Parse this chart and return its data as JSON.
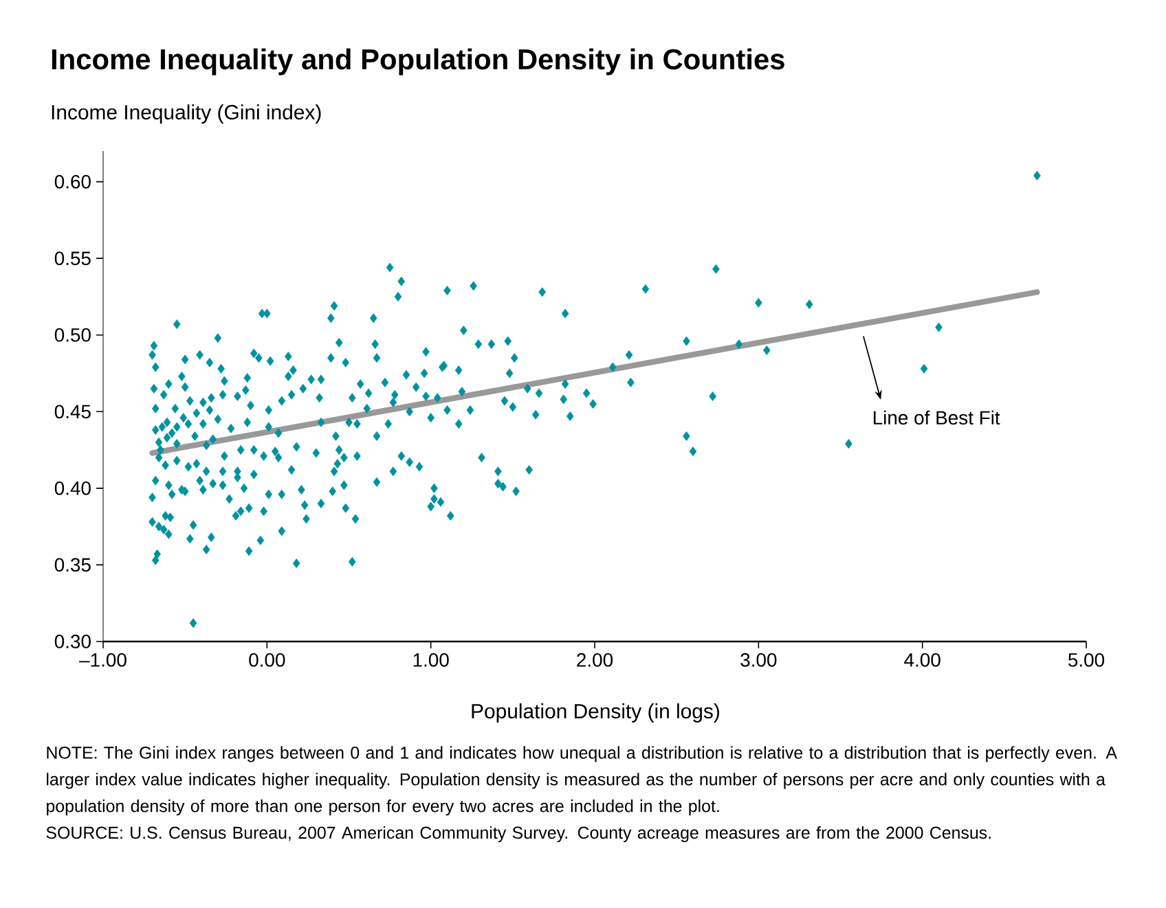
{
  "chart_data": {
    "type": "scatter",
    "title": "Income Inequality and Population Density in Counties",
    "xlabel": "Population Density (in logs)",
    "ylabel": "Income Inequality (Gini index)",
    "xlim": [
      -1,
      5
    ],
    "ylim": [
      0.3,
      0.62
    ],
    "xticks": [
      {
        "value": -1,
        "label": "–1.00"
      },
      {
        "value": 0,
        "label": "0.00"
      },
      {
        "value": 1,
        "label": "1.00"
      },
      {
        "value": 2,
        "label": "2.00"
      },
      {
        "value": 3,
        "label": "3.00"
      },
      {
        "value": 4,
        "label": "4.00"
      },
      {
        "value": 5,
        "label": "5.00"
      }
    ],
    "yticks": [
      {
        "value": 0.3,
        "label": "0.30"
      },
      {
        "value": 0.35,
        "label": "0.35"
      },
      {
        "value": 0.4,
        "label": "0.40"
      },
      {
        "value": 0.45,
        "label": "0.45"
      },
      {
        "value": 0.5,
        "label": "0.50"
      },
      {
        "value": 0.55,
        "label": "0.55"
      },
      {
        "value": 0.6,
        "label": "0.60"
      }
    ],
    "series": [
      {
        "color": "#00929f",
        "marker": "diamond",
        "x": [
          4.7,
          2.74,
          3.0,
          3.31,
          4.1,
          4.01,
          3.55,
          3.05,
          2.88,
          2.56,
          2.72,
          2.56,
          2.6,
          2.31,
          2.21,
          2.22,
          2.11,
          1.82,
          1.68,
          1.26,
          1.1,
          1.2,
          1.29,
          1.37,
          1.47,
          1.51,
          1.48,
          1.08,
          1.17,
          1.19,
          1.1,
          1.24,
          1.17,
          1.45,
          1.5,
          1.59,
          1.66,
          1.64,
          1.81,
          1.85,
          1.82,
          1.95,
          1.99,
          1.31,
          1.41,
          1.41,
          1.44,
          1.52,
          1.6,
          1.12,
          1.06,
          0.75,
          0.82,
          0.8,
          0.41,
          0.39,
          0.65,
          0.44,
          0.66,
          0.67,
          0.97,
          0.39,
          0.48,
          0.13,
          0.16,
          0.13,
          0.27,
          0.33,
          0.22,
          0.32,
          0.15,
          0.09,
          0.57,
          0.52,
          0.62,
          0.61,
          0.72,
          0.78,
          0.85,
          0.91,
          0.96,
          0.97,
          1.04,
          1.07,
          0.77,
          0.87,
          1.0,
          0.74,
          0.67,
          0.55,
          0.5,
          0.33,
          0.18,
          0.3,
          0.42,
          0.44,
          0.47,
          0.55,
          0.41,
          0.43,
          0.77,
          0.82,
          0.87,
          0.93,
          0.67,
          0.47,
          0.4,
          1.02,
          1.02,
          1.0,
          0.21,
          0.33,
          0.48,
          0.54,
          0.24,
          0.09,
          0.18,
          0.52,
          0.09,
          0.07,
          0.15,
          0.23,
          -0.03,
          0.0,
          -0.55,
          -0.3,
          -0.69,
          -0.7,
          -0.5,
          -0.41,
          -0.35,
          -0.28,
          -0.68,
          -0.08,
          -0.05,
          0.02,
          -0.52,
          -0.26,
          -0.12,
          -0.69,
          -0.6,
          -0.5,
          -0.63,
          -0.47,
          -0.27,
          -0.34,
          -0.18,
          -0.13,
          -0.1,
          0.01,
          -0.68,
          -0.56,
          -0.39,
          -0.35,
          -0.43,
          -0.51,
          -0.61,
          -0.68,
          -0.58,
          -0.48,
          -0.39,
          -0.3,
          -0.22,
          -0.12,
          0.01,
          0.07,
          -0.66,
          -0.61,
          -0.55,
          -0.44,
          -0.37,
          -0.33,
          -0.26,
          -0.16,
          -0.08,
          -0.02,
          0.05,
          -0.66,
          -0.62,
          -0.55,
          -0.48,
          -0.43,
          -0.37,
          -0.27,
          -0.18,
          -0.08,
          -0.68,
          -0.6,
          -0.52,
          -0.41,
          -0.33,
          -0.27,
          -0.18,
          -0.14,
          -0.7,
          -0.58,
          -0.5,
          -0.39,
          -0.23,
          -0.16,
          -0.19,
          -0.11,
          0.01,
          -0.02,
          -0.7,
          -0.66,
          -0.63,
          -0.6,
          -0.62,
          -0.59,
          -0.45,
          -0.47,
          -0.34,
          -0.37,
          -0.67,
          -0.68,
          -0.04,
          -0.11,
          -0.45,
          -0.65,
          -0.55,
          -0.64
        ],
        "values": [
          0.604,
          0.543,
          0.521,
          0.52,
          0.505,
          0.478,
          0.429,
          0.49,
          0.494,
          0.496,
          0.46,
          0.434,
          0.424,
          0.53,
          0.487,
          0.469,
          0.479,
          0.514,
          0.528,
          0.532,
          0.529,
          0.503,
          0.494,
          0.494,
          0.496,
          0.485,
          0.475,
          0.48,
          0.477,
          0.463,
          0.451,
          0.451,
          0.442,
          0.457,
          0.453,
          0.465,
          0.462,
          0.448,
          0.458,
          0.447,
          0.468,
          0.462,
          0.455,
          0.42,
          0.411,
          0.403,
          0.401,
          0.398,
          0.412,
          0.382,
          0.391,
          0.544,
          0.535,
          0.525,
          0.519,
          0.511,
          0.511,
          0.495,
          0.494,
          0.485,
          0.489,
          0.485,
          0.482,
          0.486,
          0.477,
          0.473,
          0.471,
          0.471,
          0.465,
          0.459,
          0.461,
          0.457,
          0.468,
          0.459,
          0.462,
          0.452,
          0.469,
          0.461,
          0.474,
          0.466,
          0.475,
          0.46,
          0.459,
          0.479,
          0.456,
          0.45,
          0.446,
          0.442,
          0.434,
          0.442,
          0.443,
          0.443,
          0.427,
          0.423,
          0.434,
          0.425,
          0.42,
          0.421,
          0.411,
          0.416,
          0.411,
          0.421,
          0.417,
          0.414,
          0.404,
          0.402,
          0.398,
          0.4,
          0.393,
          0.388,
          0.399,
          0.39,
          0.387,
          0.38,
          0.38,
          0.372,
          0.351,
          0.352,
          0.396,
          0.42,
          0.412,
          0.389,
          0.514,
          0.514,
          0.507,
          0.498,
          0.493,
          0.487,
          0.484,
          0.487,
          0.482,
          0.478,
          0.479,
          0.488,
          0.485,
          0.483,
          0.473,
          0.47,
          0.472,
          0.465,
          0.468,
          0.466,
          0.461,
          0.457,
          0.461,
          0.459,
          0.46,
          0.464,
          0.454,
          0.451,
          0.452,
          0.452,
          0.456,
          0.451,
          0.449,
          0.446,
          0.443,
          0.438,
          0.436,
          0.442,
          0.442,
          0.445,
          0.439,
          0.443,
          0.44,
          0.436,
          0.43,
          0.433,
          0.429,
          0.434,
          0.428,
          0.432,
          0.421,
          0.425,
          0.425,
          0.421,
          0.424,
          0.42,
          0.415,
          0.418,
          0.414,
          0.416,
          0.411,
          0.411,
          0.411,
          0.409,
          0.405,
          0.402,
          0.399,
          0.405,
          0.403,
          0.402,
          0.407,
          0.4,
          0.394,
          0.396,
          0.398,
          0.399,
          0.393,
          0.385,
          0.382,
          0.387,
          0.396,
          0.385,
          0.378,
          0.375,
          0.373,
          0.37,
          0.382,
          0.381,
          0.376,
          0.367,
          0.368,
          0.36,
          0.357,
          0.353,
          0.366,
          0.359,
          0.312,
          0.425,
          0.44,
          0.44
        ]
      },
      {
        "type": "line",
        "color": "#999999",
        "marker": "none",
        "x": [
          -0.7,
          4.7
        ],
        "values": [
          0.423,
          0.528
        ]
      }
    ],
    "annotations": [
      "Line of Best Fit",
      "NOTE: The Gini index ranges between 0 and 1 and indicates how unequal a distribution is relative to a distribution that is perfectly even. A larger index value indicates higher inequality. Population density is measured as the number of persons per acre and only counties with a population density of more than one person for every two acres are included in the plot.",
      "SOURCE: U.S. Census Bureau, 2007 American Community Survey. County acreage measures are from the 2000 Census."
    ]
  }
}
